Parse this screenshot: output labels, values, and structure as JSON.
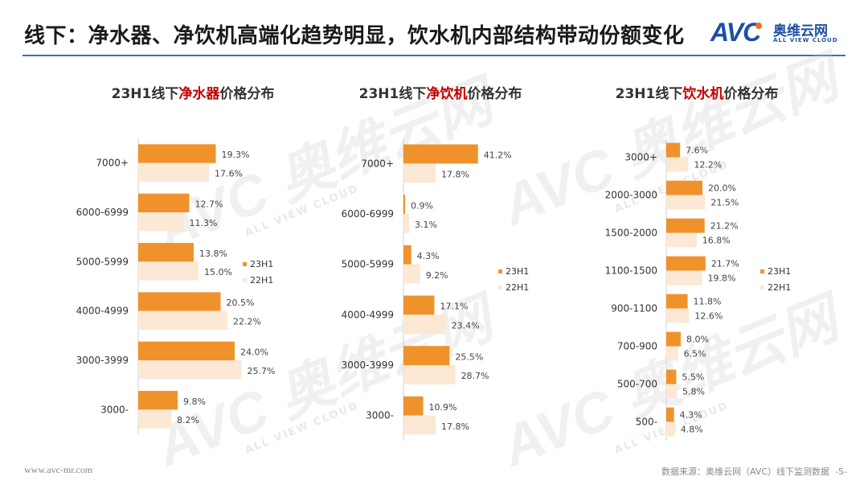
{
  "header": {
    "title": "线下：净水器、净饮机高端化趋势明显，饮水机内部结构带动份额变化",
    "logo_mark": "AVC",
    "logo_cn": "奥维云网",
    "logo_en": "ALL VIEW CLOUD"
  },
  "watermark": {
    "text": "AVC 奥维云网",
    "sub": "ALL VIEW CLOUD"
  },
  "colors": {
    "s23": "#f0922b",
    "s22": "#fbe8d5",
    "accent_red": "#c00000",
    "rule": "#3a6fb0"
  },
  "chart_data": [
    {
      "type": "bar",
      "orientation": "horizontal",
      "title_prefix": "23H1线下",
      "title_highlight": "净水器",
      "title_suffix": "价格分布",
      "categories": [
        "7000+",
        "6000-6999",
        "5000-5999",
        "4000-4999",
        "3000-3999",
        "3000-"
      ],
      "series": [
        {
          "name": "23H1",
          "values": [
            19.3,
            12.7,
            13.8,
            20.5,
            24.0,
            9.8
          ],
          "labels": [
            "19.3%",
            "12.7%",
            "13.8%",
            "20.5%",
            "24.0%",
            "9.8%"
          ]
        },
        {
          "name": "22H1",
          "values": [
            17.6,
            11.3,
            15.0,
            22.2,
            25.7,
            8.2
          ],
          "labels": [
            "17.6%",
            "11.3%",
            "15.0%",
            "22.2%",
            "25.7%",
            "8.2%"
          ]
        }
      ],
      "legend": [
        "23H1",
        "22H1"
      ]
    },
    {
      "type": "bar",
      "orientation": "horizontal",
      "title_prefix": "23H1线下",
      "title_highlight": "净饮机",
      "title_suffix": "价格分布",
      "categories": [
        "7000+",
        "6000-6999",
        "5000-5999",
        "4000-4999",
        "3000-3999",
        "3000-"
      ],
      "series": [
        {
          "name": "23H1",
          "values": [
            41.2,
            0.9,
            4.3,
            17.1,
            25.5,
            10.9
          ],
          "labels": [
            "41.2%",
            "0.9%",
            "4.3%",
            "17.1%",
            "25.5%",
            "10.9%"
          ]
        },
        {
          "name": "22H1",
          "values": [
            17.8,
            3.1,
            9.2,
            23.4,
            28.7,
            17.8
          ],
          "labels": [
            "17.8%",
            "3.1%",
            "9.2%",
            "23.4%",
            "28.7%",
            "17.8%"
          ]
        }
      ],
      "legend": [
        "23H1",
        "22H1"
      ]
    },
    {
      "type": "bar",
      "orientation": "horizontal",
      "title_prefix": "23H1线下",
      "title_highlight": "饮水机",
      "title_suffix": "价格分布",
      "categories": [
        "3000+",
        "2000-3000",
        "1500-2000",
        "1100-1500",
        "900-1100",
        "700-900",
        "500-700",
        "500-"
      ],
      "series": [
        {
          "name": "23H1",
          "values": [
            7.6,
            20.0,
            21.2,
            21.7,
            11.8,
            8.0,
            5.5,
            4.3
          ],
          "labels": [
            "7.6%",
            "20.0%",
            "21.2%",
            "21.7%",
            "11.8%",
            "8.0%",
            "5.5%",
            "4.3%"
          ]
        },
        {
          "name": "22H1",
          "values": [
            12.2,
            21.5,
            16.8,
            19.8,
            12.6,
            6.5,
            5.8,
            4.8
          ],
          "labels": [
            "12.2%",
            "21.5%",
            "16.8%",
            "19.8%",
            "12.6%",
            "6.5%",
            "5.8%",
            "4.8%"
          ]
        }
      ],
      "legend": [
        "23H1",
        "22H1"
      ]
    }
  ],
  "footer": {
    "website": "www.avc-mr.com",
    "source": "数据来源：奥维云网（AVC）线下监测数据",
    "page": "-5-"
  }
}
